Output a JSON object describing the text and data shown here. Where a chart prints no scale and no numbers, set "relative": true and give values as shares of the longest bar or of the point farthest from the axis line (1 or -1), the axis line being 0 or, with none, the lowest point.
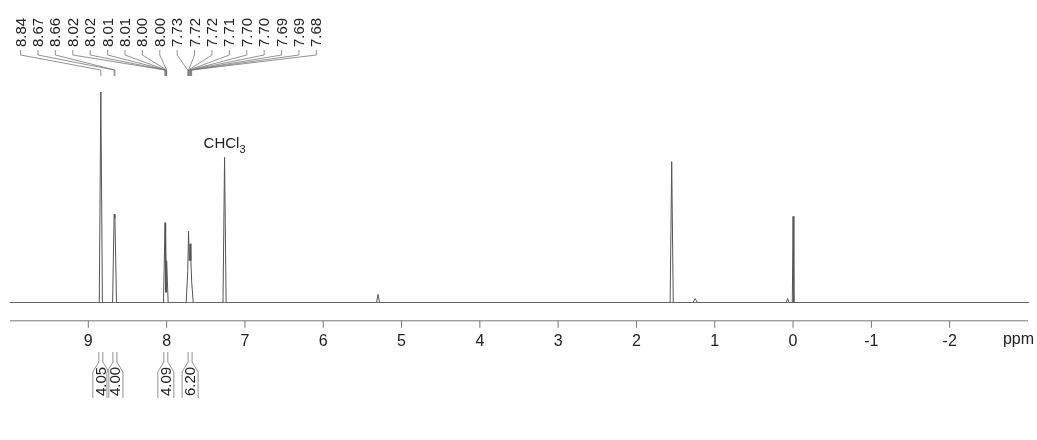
{
  "chart_data": {
    "type": "line",
    "relative": true,
    "xlabel": "ppm",
    "xlim": [
      10,
      -3
    ],
    "xticks": [
      9,
      8,
      7,
      6,
      5,
      4,
      3,
      2,
      1,
      0,
      -1,
      -2
    ],
    "grid": false,
    "legend": false,
    "marker": "none",
    "line_style": "solid",
    "series": [
      {
        "color": "#555555",
        "x": [
          10,
          8.86,
          8.84,
          8.82,
          8.69,
          8.67,
          8.66,
          8.64,
          8.04,
          8.02,
          8.015,
          8.01,
          8.005,
          8.0,
          7.98,
          7.75,
          7.73,
          7.72,
          7.71,
          7.7,
          7.69,
          7.68,
          7.66,
          7.28,
          7.26,
          7.24,
          5.32,
          5.3,
          5.28,
          1.57,
          1.55,
          1.53,
          1.28,
          1.25,
          1.22,
          0.09,
          0.07,
          0.05,
          0.01,
          0,
          -0.01,
          -3
        ],
        "values": [
          0,
          0,
          1,
          0,
          0,
          0.42,
          0.4,
          0,
          0,
          0.38,
          0.05,
          0.34,
          0.05,
          0.2,
          0,
          0,
          0.15,
          0.34,
          0.2,
          0.28,
          0.2,
          0.1,
          0,
          0,
          0.69,
          0,
          0,
          0.04,
          0,
          0,
          0.67,
          0,
          0,
          0.02,
          0,
          0,
          0.02,
          0,
          0,
          0.41,
          0,
          0
        ]
      }
    ],
    "annotations": [
      {
        "text": "8.84",
        "x": 8.84
      },
      {
        "text": "8.67",
        "x": 8.67
      },
      {
        "text": "8.66",
        "x": 8.66
      },
      {
        "text": "8.02",
        "x": 8.02
      },
      {
        "text": "8.02",
        "x": 8.02
      },
      {
        "text": "8.01",
        "x": 8.01
      },
      {
        "text": "8.01",
        "x": 8.01
      },
      {
        "text": "8.00",
        "x": 8.0
      },
      {
        "text": "8.00",
        "x": 8.0
      },
      {
        "text": "7.73",
        "x": 7.73
      },
      {
        "text": "7.72",
        "x": 7.72
      },
      {
        "text": "7.72",
        "x": 7.72
      },
      {
        "text": "7.71",
        "x": 7.71
      },
      {
        "text": "7.70",
        "x": 7.7
      },
      {
        "text": "7.70",
        "x": 7.7
      },
      {
        "text": "7.69",
        "x": 7.69
      },
      {
        "text": "7.69",
        "x": 7.69
      },
      {
        "text": "7.68",
        "x": 7.68
      },
      {
        "text": "CHCl$_{3}$",
        "x": 7.26,
        "y": 0.69
      },
      {
        "text": "4.05",
        "x": 8.84
      },
      {
        "text": "4.00",
        "x": 8.66
      },
      {
        "text": "4.09",
        "x": 8.01
      },
      {
        "text": "6.20",
        "x": 7.7
      }
    ]
  }
}
